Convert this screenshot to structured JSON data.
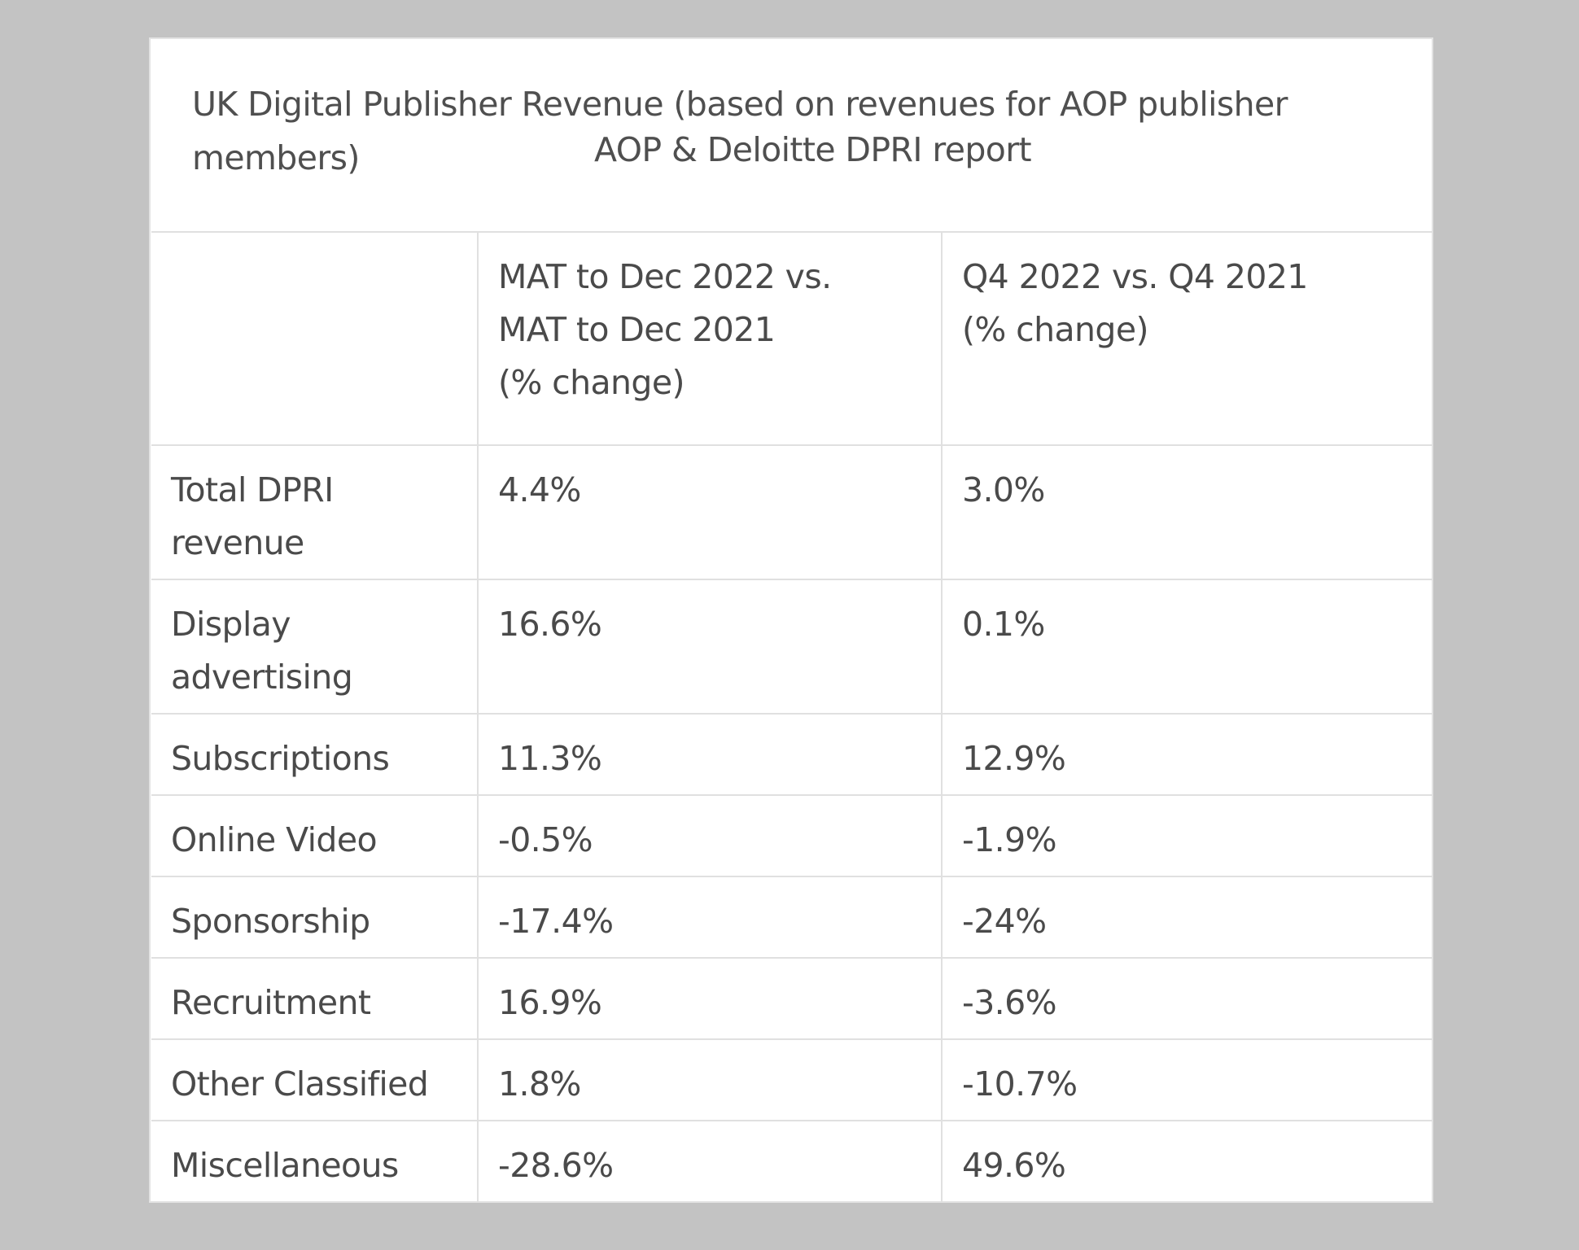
{
  "caption": {
    "line1": "UK Digital Publisher Revenue (based on revenues for AOP publisher",
    "line2": "members)",
    "source": "AOP & Deloitte DPRI report"
  },
  "table": {
    "headers": {
      "col1": "",
      "col2_line1": "MAT to Dec 2022 vs.",
      "col2_line2": "MAT to Dec 2021",
      "col2_line3": "(% change)",
      "col3_line1": "Q4 2022 vs. Q4 2021",
      "col3_line2": "(% change)"
    },
    "rows": [
      {
        "label_line1": "Total DPRI",
        "label_line2": "revenue",
        "mat": "4.4%",
        "q4": "3.0%"
      },
      {
        "label_line1": "Display",
        "label_line2": "advertising",
        "mat": "16.6%",
        "q4": "0.1%"
      },
      {
        "label": "Subscriptions",
        "mat": "11.3%",
        "q4": "12.9%"
      },
      {
        "label": "Online Video",
        "mat": "-0.5%",
        "q4": "-1.9%"
      },
      {
        "label": "Sponsorship",
        "mat": "-17.4%",
        "q4": "-24%"
      },
      {
        "label": "Recruitment",
        "mat": "16.9%",
        "q4": "-3.6%"
      },
      {
        "label": "Other Classified",
        "mat": "1.8%",
        "q4": "-10.7%"
      },
      {
        "label": "Miscellaneous",
        "mat": "-28.6%",
        "q4": "49.6%"
      }
    ]
  }
}
